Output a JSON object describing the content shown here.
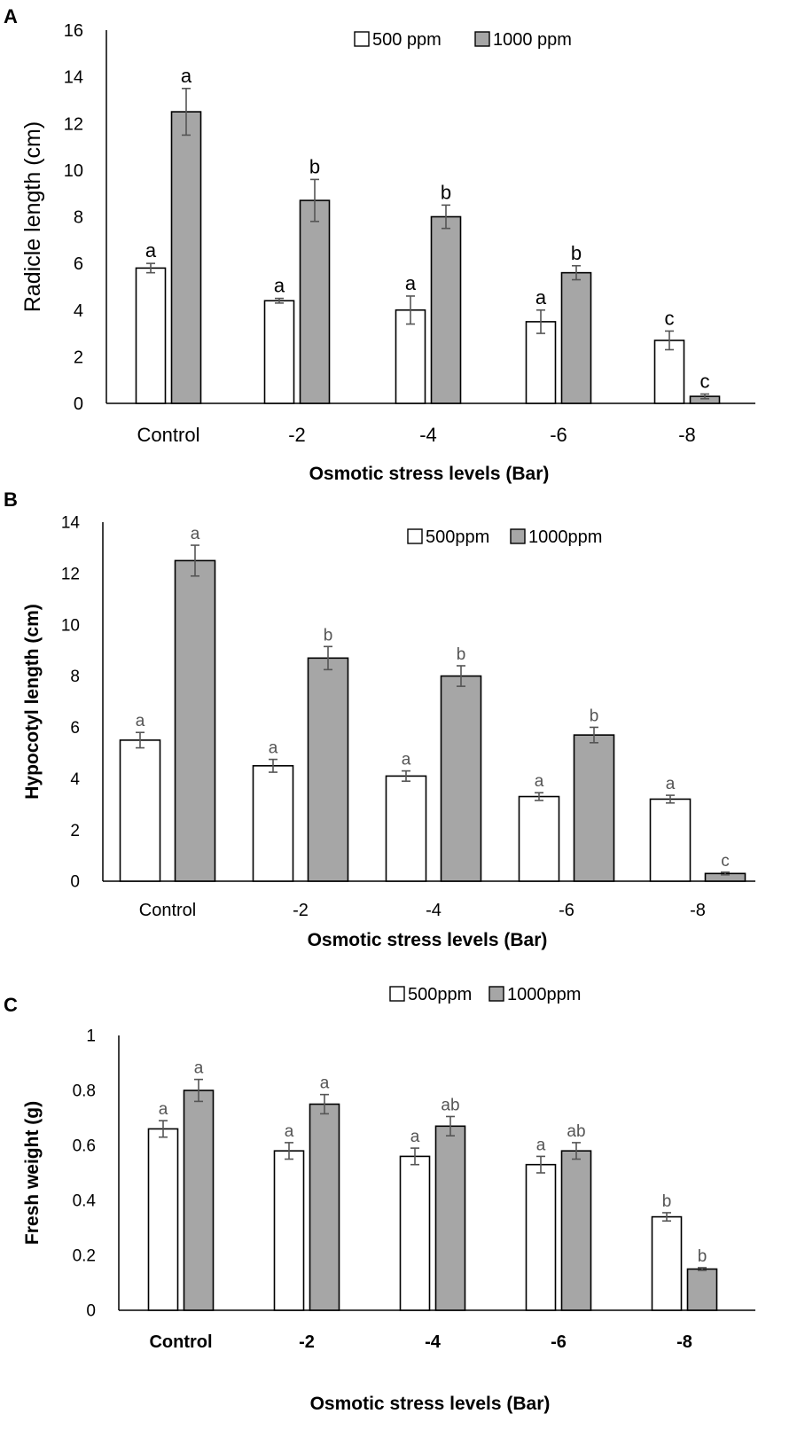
{
  "chart_data": [
    {
      "panel": "A",
      "type": "bar",
      "categories": [
        "Control",
        "-2",
        "-4",
        "-6",
        "-8"
      ],
      "xlabel": "Osmotic stress levels (Bar)",
      "ylabel": "Radicle length (cm)",
      "ylim": [
        0,
        16
      ],
      "yticks": [
        "0",
        "2",
        "4",
        "6",
        "8",
        "10",
        "12",
        "14",
        "16"
      ],
      "series": [
        {
          "name": "500 ppm",
          "color": "#ffffff",
          "values": [
            5.8,
            4.4,
            4.0,
            3.5,
            2.7
          ],
          "errors": [
            0.2,
            0.1,
            0.6,
            0.5,
            0.4
          ],
          "letters": [
            "a",
            "a",
            "a",
            "a",
            "c"
          ]
        },
        {
          "name": "1000 ppm",
          "color": "#a6a6a6",
          "values": [
            12.5,
            8.7,
            8.0,
            5.6,
            0.3
          ],
          "errors": [
            1.0,
            0.9,
            0.5,
            0.3,
            0.1
          ],
          "letters": [
            "a",
            "b",
            "b",
            "b",
            "c"
          ]
        }
      ],
      "legend": "top-right"
    },
    {
      "panel": "B",
      "type": "bar",
      "categories": [
        "Control",
        "-2",
        "-4",
        "-6",
        "-8"
      ],
      "xlabel": "Osmotic stress levels (Bar)",
      "ylabel": "Hypocotyl length (cm)",
      "ylim": [
        0,
        14
      ],
      "yticks": [
        "0",
        "2",
        "4",
        "6",
        "8",
        "10",
        "12",
        "14"
      ],
      "series": [
        {
          "name": "500ppm",
          "color": "#ffffff",
          "values": [
            5.5,
            4.5,
            4.1,
            3.3,
            3.2
          ],
          "errors": [
            0.3,
            0.25,
            0.2,
            0.15,
            0.15
          ],
          "letters": [
            "a",
            "a",
            "a",
            "a",
            "a"
          ]
        },
        {
          "name": "1000ppm",
          "color": "#a6a6a6",
          "values": [
            12.5,
            8.7,
            8.0,
            5.7,
            0.3
          ],
          "errors": [
            0.6,
            0.45,
            0.4,
            0.3,
            0.05
          ],
          "letters": [
            "a",
            "b",
            "b",
            "b",
            "c"
          ]
        }
      ],
      "legend": "top-right"
    },
    {
      "panel": "C",
      "type": "bar",
      "categories": [
        "Control",
        "-2",
        "-4",
        "-6",
        "-8"
      ],
      "xlabel": "Osmotic stress levels (Bar)",
      "ylabel": "Fresh weight (g)",
      "ylim": [
        0,
        1
      ],
      "yticks": [
        "0",
        "0.2",
        "0.4",
        "0.6",
        "0.8",
        "1"
      ],
      "series": [
        {
          "name": "500ppm",
          "color": "#ffffff",
          "values": [
            0.66,
            0.58,
            0.56,
            0.53,
            0.34
          ],
          "errors": [
            0.03,
            0.03,
            0.03,
            0.03,
            0.015
          ],
          "letters": [
            "a",
            "a",
            "a",
            "a",
            "b"
          ]
        },
        {
          "name": "1000ppm",
          "color": "#a6a6a6",
          "values": [
            0.8,
            0.75,
            0.67,
            0.58,
            0.15
          ],
          "errors": [
            0.04,
            0.035,
            0.035,
            0.03,
            0.005
          ],
          "letters": [
            "a",
            "a",
            "ab",
            "ab",
            "b"
          ]
        }
      ],
      "legend": "top-right"
    }
  ]
}
